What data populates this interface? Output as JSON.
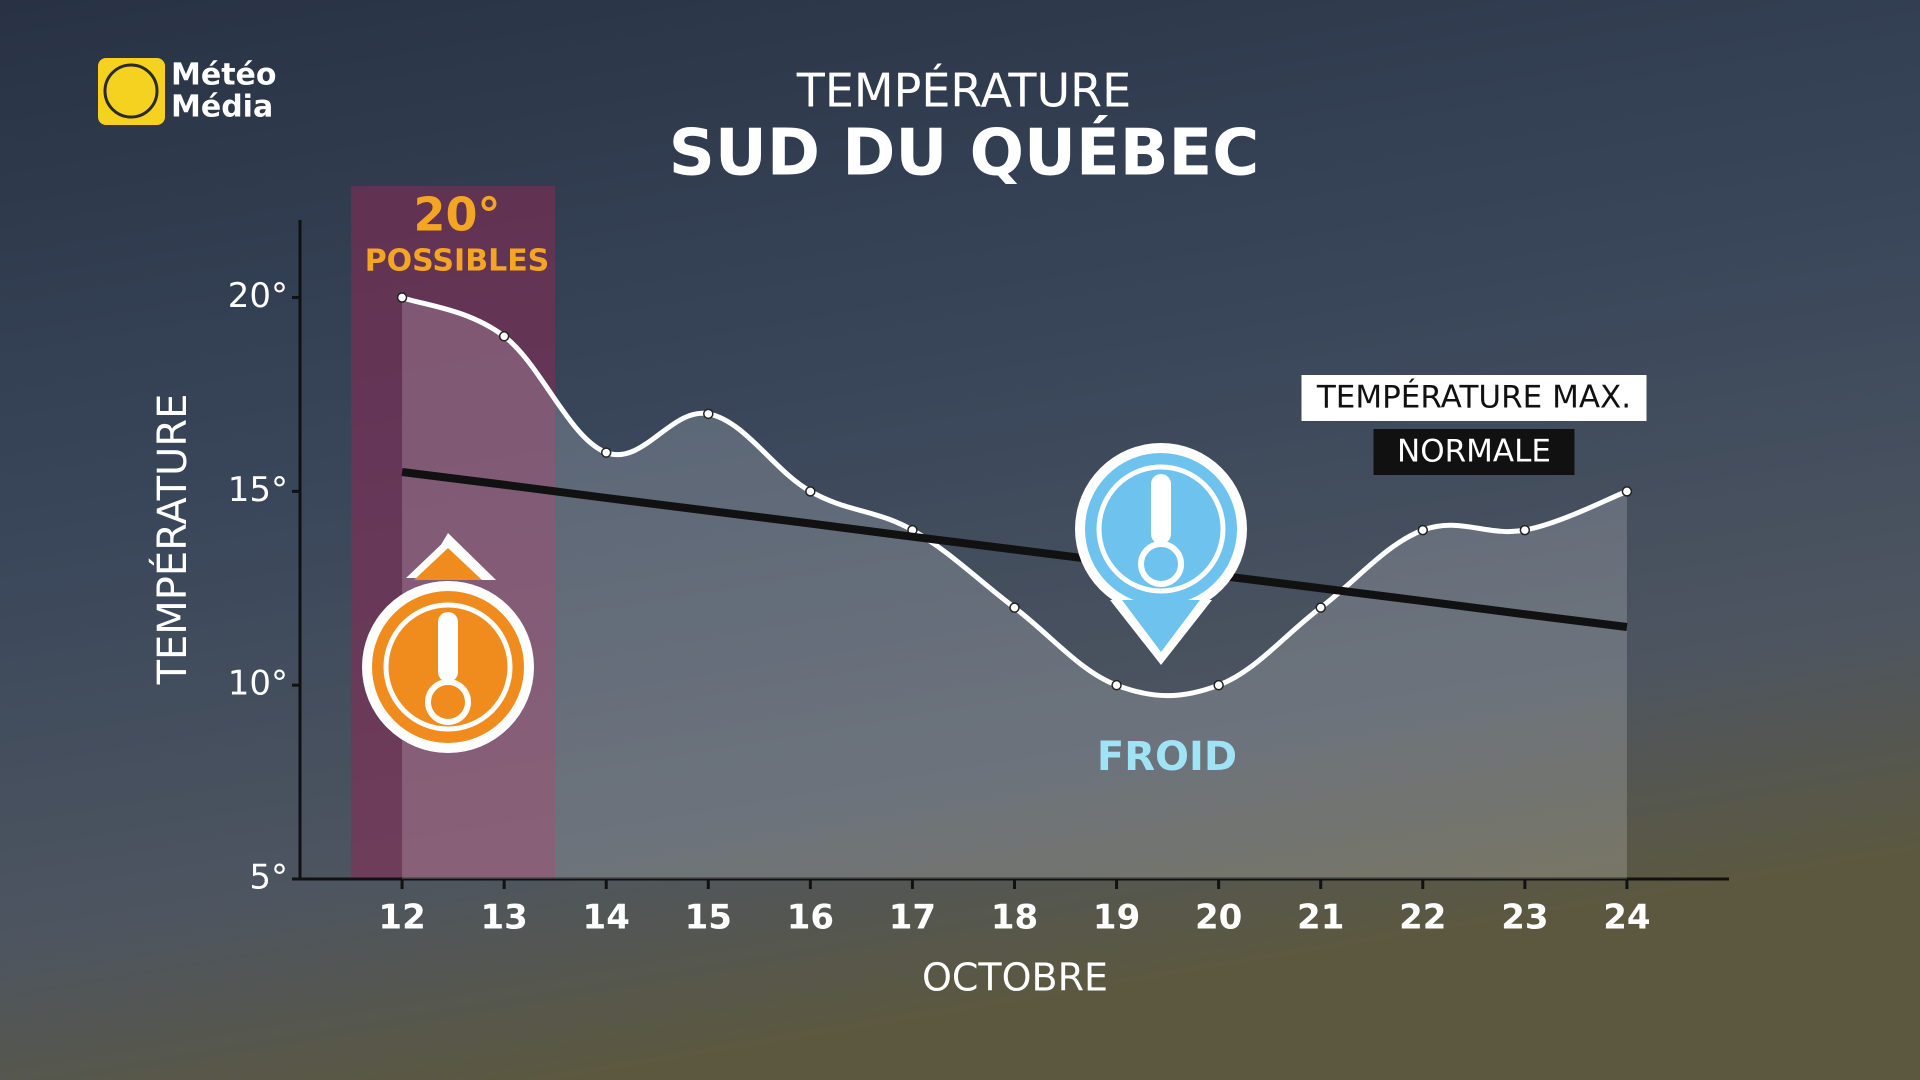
{
  "logo": [
    "Météo",
    "Média"
  ],
  "chart_data": {
    "type": "line",
    "title": "TEMPÉRATURE",
    "subtitle": "SUD DU QUÉBEC",
    "xlabel": "OCTOBRE",
    "ylabel": "TEMPÉRATURE",
    "x": [
      12,
      13,
      14,
      15,
      16,
      17,
      18,
      19,
      20,
      21,
      22,
      23,
      24
    ],
    "series": [
      {
        "name": "TEMPÉRATURE MAX.",
        "color": "#ffffff",
        "values": [
          20,
          19,
          16,
          17,
          15,
          14,
          12,
          10,
          10,
          12,
          14,
          14,
          15
        ]
      },
      {
        "name": "NORMALE",
        "color": "#111111",
        "values": [
          15.5,
          15.17,
          14.83,
          14.5,
          14.17,
          13.83,
          13.5,
          13.17,
          12.83,
          12.5,
          12.17,
          11.83,
          11.5
        ]
      }
    ],
    "xlim": [
      11,
      25
    ],
    "ylim": [
      5,
      22
    ],
    "xticks": [
      12,
      13,
      14,
      15,
      16,
      17,
      18,
      19,
      20,
      21,
      22,
      23,
      24
    ],
    "yticks": [
      {
        "value": 5,
        "label": "5°"
      },
      {
        "value": 10,
        "label": "10°"
      },
      {
        "value": 15,
        "label": "15°"
      },
      {
        "value": 20,
        "label": "20°"
      }
    ],
    "highlight_range": [
      11.5,
      13.5
    ],
    "highlight_color": "#8a2a55",
    "annotations": [
      "20°",
      "POSSIBLES",
      "FROID"
    ]
  }
}
